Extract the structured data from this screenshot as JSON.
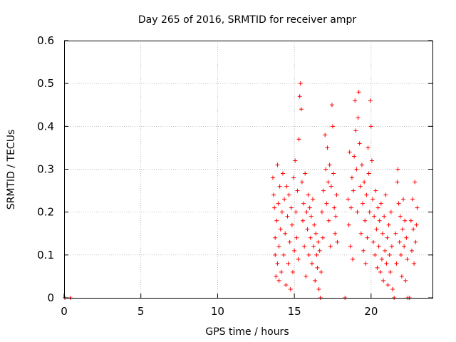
{
  "chart_data": {
    "type": "scatter",
    "title": "Day 265 of 2016, SRMTID for receiver ampr",
    "xlabel": "GPS time / hours",
    "ylabel": "SRMTID / TECUs",
    "xlim": [
      0,
      24
    ],
    "ylim": [
      0,
      0.6
    ],
    "xticks": [
      0,
      5,
      10,
      15,
      20
    ],
    "yticks": [
      0,
      0.1,
      0.2,
      0.3,
      0.4,
      0.5,
      0.6
    ],
    "ytick_labels": [
      "0",
      "0.1",
      "0.2",
      "0.3",
      "0.4",
      "0.5",
      "0.6"
    ],
    "grid": true,
    "marker": "+",
    "color": "#ff0000",
    "series": [
      {
        "name": "SRMTID",
        "points": [
          [
            0.05,
            0
          ],
          [
            0.4,
            0
          ],
          [
            13.6,
            0.28
          ],
          [
            13.65,
            0.24
          ],
          [
            13.7,
            0.21
          ],
          [
            13.75,
            0.14
          ],
          [
            13.75,
            0.1
          ],
          [
            13.8,
            0.05
          ],
          [
            13.85,
            0.18
          ],
          [
            13.9,
            0.31
          ],
          [
            13.9,
            0.08
          ],
          [
            13.95,
            0.22
          ],
          [
            14.0,
            0.12
          ],
          [
            14.0,
            0.04
          ],
          [
            14.05,
            0.26
          ],
          [
            14.1,
            0.16
          ],
          [
            14.15,
            0.06
          ],
          [
            14.2,
            0.2
          ],
          [
            14.25,
            0.29
          ],
          [
            14.3,
            0.1
          ],
          [
            14.35,
            0.23
          ],
          [
            14.4,
            0.15
          ],
          [
            14.45,
            0.03
          ],
          [
            14.5,
            0.26
          ],
          [
            14.55,
            0.19
          ],
          [
            14.6,
            0.08
          ],
          [
            14.65,
            0.24
          ],
          [
            14.7,
            0.13
          ],
          [
            14.75,
            0.02
          ],
          [
            14.8,
            0.21
          ],
          [
            14.85,
            0.17
          ],
          [
            14.9,
            0.06
          ],
          [
            14.95,
            0.28
          ],
          [
            15.0,
            0.11
          ],
          [
            15.05,
            0.32
          ],
          [
            15.1,
            0.2
          ],
          [
            15.15,
            0.14
          ],
          [
            15.2,
            0.25
          ],
          [
            15.25,
            0.09
          ],
          [
            15.3,
            0.37
          ],
          [
            15.35,
            0.47
          ],
          [
            15.4,
            0.5
          ],
          [
            15.45,
            0.44
          ],
          [
            15.5,
            0.27
          ],
          [
            15.55,
            0.18
          ],
          [
            15.6,
            0.22
          ],
          [
            15.65,
            0.12
          ],
          [
            15.7,
            0.29
          ],
          [
            15.75,
            0.05
          ],
          [
            15.8,
            0.2
          ],
          [
            15.85,
            0.16
          ],
          [
            15.9,
            0.24
          ],
          [
            15.95,
            0.1
          ],
          [
            16.0,
            0.21
          ],
          [
            16.05,
            0.14
          ],
          [
            16.1,
            0.19
          ],
          [
            16.15,
            0.08
          ],
          [
            16.2,
            0.23
          ],
          [
            16.25,
            0.12
          ],
          [
            16.3,
            0.17
          ],
          [
            16.35,
            0.04
          ],
          [
            16.4,
            0.15
          ],
          [
            16.45,
            0.1
          ],
          [
            16.5,
            0.07
          ],
          [
            16.55,
            0.13
          ],
          [
            16.6,
            0.02
          ],
          [
            16.65,
            0.11
          ],
          [
            16.7,
            0.0
          ],
          [
            16.75,
            0.06
          ],
          [
            16.8,
            0.2
          ],
          [
            16.85,
            0.14
          ],
          [
            16.9,
            0.25
          ],
          [
            17.0,
            0.38
          ],
          [
            17.05,
            0.3
          ],
          [
            17.1,
            0.22
          ],
          [
            17.15,
            0.35
          ],
          [
            17.2,
            0.27
          ],
          [
            17.25,
            0.18
          ],
          [
            17.3,
            0.31
          ],
          [
            17.35,
            0.12
          ],
          [
            17.4,
            0.26
          ],
          [
            17.45,
            0.45
          ],
          [
            17.5,
            0.4
          ],
          [
            17.55,
            0.29
          ],
          [
            17.6,
            0.21
          ],
          [
            17.65,
            0.15
          ],
          [
            17.7,
            0.19
          ],
          [
            17.75,
            0.24
          ],
          [
            17.8,
            0.13
          ],
          [
            18.3,
            0
          ],
          [
            18.5,
            0.23
          ],
          [
            18.55,
            0.17
          ],
          [
            18.6,
            0.34
          ],
          [
            18.65,
            0.12
          ],
          [
            18.7,
            0.21
          ],
          [
            18.75,
            0.28
          ],
          [
            18.8,
            0.09
          ],
          [
            18.85,
            0.25
          ],
          [
            18.9,
            0.33
          ],
          [
            18.95,
            0.46
          ],
          [
            19.0,
            0.39
          ],
          [
            19.05,
            0.3
          ],
          [
            19.1,
            0.2
          ],
          [
            19.15,
            0.42
          ],
          [
            19.2,
            0.48
          ],
          [
            19.25,
            0.36
          ],
          [
            19.3,
            0.26
          ],
          [
            19.35,
            0.15
          ],
          [
            19.4,
            0.31
          ],
          [
            19.45,
            0.22
          ],
          [
            19.5,
            0.11
          ],
          [
            19.55,
            0.27
          ],
          [
            19.6,
            0.18
          ],
          [
            19.65,
            0.08
          ],
          [
            19.7,
            0.24
          ],
          [
            19.75,
            0.14
          ],
          [
            19.8,
            0.35
          ],
          [
            19.85,
            0.29
          ],
          [
            19.9,
            0.2
          ],
          [
            19.95,
            0.46
          ],
          [
            20.0,
            0.4
          ],
          [
            20.05,
            0.32
          ],
          [
            20.1,
            0.23
          ],
          [
            20.15,
            0.13
          ],
          [
            20.2,
            0.19
          ],
          [
            20.25,
            0.1
          ],
          [
            20.3,
            0.25
          ],
          [
            20.35,
            0.16
          ],
          [
            20.4,
            0.07
          ],
          [
            20.45,
            0.21
          ],
          [
            20.5,
            0.12
          ],
          [
            20.55,
            0.18
          ],
          [
            20.6,
            0.06
          ],
          [
            20.65,
            0.22
          ],
          [
            20.7,
            0.09
          ],
          [
            20.75,
            0.15
          ],
          [
            20.8,
            0.04
          ],
          [
            20.85,
            0.19
          ],
          [
            20.9,
            0.11
          ],
          [
            20.95,
            0.24
          ],
          [
            21.0,
            0.08
          ],
          [
            21.05,
            0.14
          ],
          [
            21.1,
            0.03
          ],
          [
            21.15,
            0.17
          ],
          [
            21.2,
            0.1
          ],
          [
            21.25,
            0.06
          ],
          [
            21.3,
            0.2
          ],
          [
            21.35,
            0.12
          ],
          [
            21.4,
            0.02
          ],
          [
            21.5,
            0.0
          ],
          [
            21.6,
            0.15
          ],
          [
            21.65,
            0.08
          ],
          [
            21.7,
            0.27
          ],
          [
            21.75,
            0.3
          ],
          [
            21.8,
            0.22
          ],
          [
            21.85,
            0.13
          ],
          [
            21.9,
            0.19
          ],
          [
            21.95,
            0.1
          ],
          [
            22.0,
            0.05
          ],
          [
            22.05,
            0.16
          ],
          [
            22.1,
            0.23
          ],
          [
            22.15,
            0.12
          ],
          [
            22.2,
            0.18
          ],
          [
            22.25,
            0.04
          ],
          [
            22.3,
            0.14
          ],
          [
            22.35,
            0.09
          ],
          [
            22.4,
            0.0
          ],
          [
            22.5,
            0.0
          ],
          [
            22.6,
            0.18
          ],
          [
            22.65,
            0.11
          ],
          [
            22.7,
            0.23
          ],
          [
            22.75,
            0.16
          ],
          [
            22.8,
            0.08
          ],
          [
            22.85,
            0.27
          ],
          [
            22.9,
            0.13
          ],
          [
            22.95,
            0.17
          ],
          [
            23.0,
            0.21
          ]
        ]
      }
    ]
  }
}
